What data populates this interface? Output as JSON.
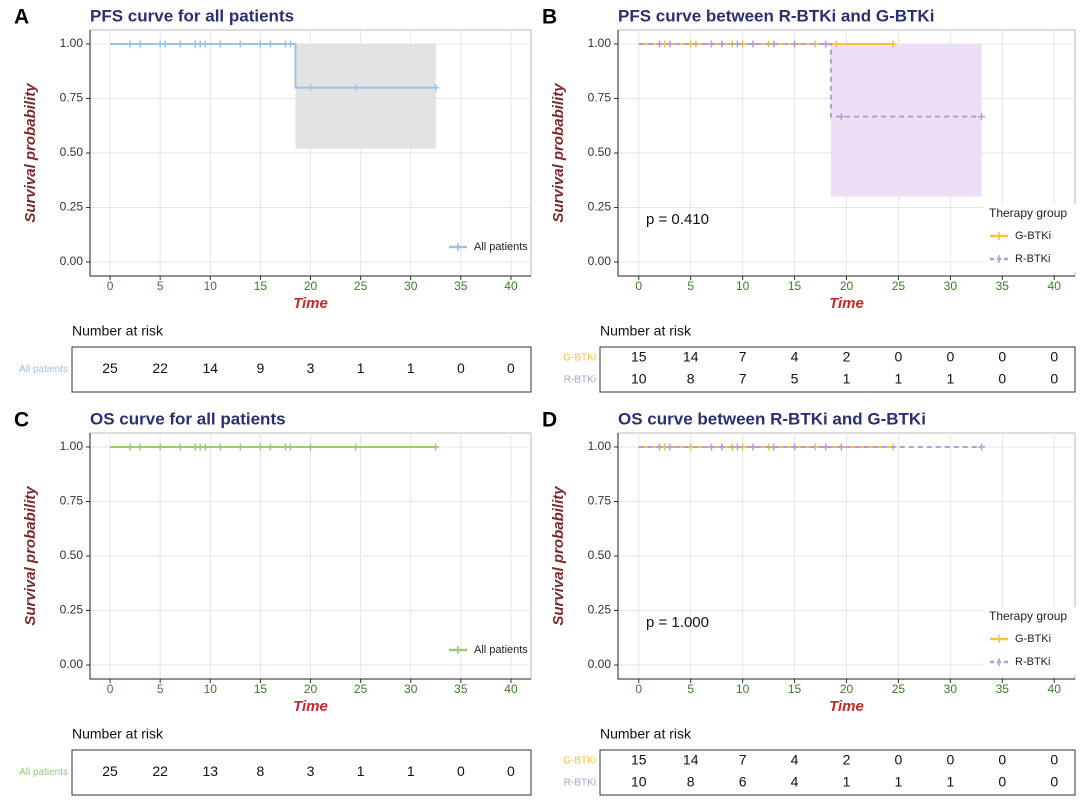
{
  "chart_data": [
    {
      "type": "step",
      "panel": "A",
      "title": "PFS curve for all patients",
      "x_label": "Time",
      "y_label": "Survival probability",
      "xlim": [
        -2,
        42
      ],
      "ylim": [
        -0.064,
        1.064
      ],
      "xticks": [
        0,
        5,
        10,
        15,
        20,
        25,
        30,
        35,
        40
      ],
      "yticks": [
        {
          "value": 0,
          "label": "0.00"
        },
        {
          "value": 0.25,
          "label": "0.25"
        },
        {
          "value": 0.5,
          "label": "0.50"
        },
        {
          "value": 0.75,
          "label": "0.75"
        },
        {
          "value": 1,
          "label": "1.00"
        }
      ],
      "grid": true,
      "legend": "bottom-right",
      "series": [
        {
          "name": "All patients",
          "color": "#9cc3e6",
          "line_style": "solid",
          "x": [
            0,
            18.5,
            18.5,
            32.5
          ],
          "values": [
            1,
            1,
            0.8,
            0.8
          ],
          "censor_x": [
            2,
            3,
            5,
            5.5,
            7,
            8.5,
            9,
            9.5,
            11,
            13,
            15,
            16,
            17.5,
            18,
            20,
            24.5,
            32.5
          ],
          "censor_y": [
            1,
            1,
            1,
            1,
            1,
            1,
            1,
            1,
            1,
            1,
            1,
            1,
            1,
            1,
            0.8,
            0.8,
            0.8
          ],
          "ci_color": "#e3e3e3",
          "ci_x": [
            18.5,
            32.5
          ],
          "ci_lower": [
            0.52,
            0.52
          ],
          "ci_upper": [
            1,
            1
          ]
        }
      ],
      "risk_table": {
        "title": "Number at risk",
        "rows": [
          {
            "name": "All patients",
            "color": "#9cc3e6",
            "values": [
              25,
              22,
              14,
              9,
              3,
              1,
              1,
              0,
              0
            ]
          }
        ]
      }
    },
    {
      "type": "step",
      "panel": "B",
      "title": "PFS curve between R-BTKi and G-BTKi",
      "x_label": "Time",
      "y_label": "Survival probability",
      "annotation": "p = 0.410",
      "xlim": [
        -2,
        42
      ],
      "ylim": [
        -0.064,
        1.064
      ],
      "xticks": [
        0,
        5,
        10,
        15,
        20,
        25,
        30,
        35,
        40
      ],
      "yticks": [
        {
          "value": 0,
          "label": "0.00"
        },
        {
          "value": 0.25,
          "label": "0.25"
        },
        {
          "value": 0.5,
          "label": "0.50"
        },
        {
          "value": 0.75,
          "label": "0.75"
        },
        {
          "value": 1,
          "label": "1.00"
        }
      ],
      "grid": true,
      "legend": "bottom-right",
      "legend_title": "Therapy group",
      "series": [
        {
          "name": "G-BTKi",
          "color": "#f5c342",
          "line_style": "solid",
          "x": [
            0,
            24.7
          ],
          "values": [
            1,
            1
          ],
          "censor_x": [
            2.5,
            5,
            5.5,
            8,
            9,
            10,
            12.5,
            15,
            17,
            19,
            24.5
          ],
          "censor_y": [
            1,
            1,
            1,
            1,
            1,
            1,
            1,
            1,
            1,
            1,
            1
          ]
        },
        {
          "name": "R-BTKi",
          "color": "#b89cd4",
          "line_style": "dashed",
          "x": [
            0,
            18.5,
            18.5,
            33
          ],
          "values": [
            1,
            1,
            0.667,
            0.667
          ],
          "censor_x": [
            2,
            3,
            7,
            8,
            9.5,
            11,
            13,
            15,
            18,
            19.5,
            33
          ],
          "censor_y": [
            1,
            1,
            1,
            1,
            1,
            1,
            1,
            1,
            1,
            0.667,
            0.667
          ],
          "ci_color": "#ecdff5",
          "ci_x": [
            18.5,
            33
          ],
          "ci_lower": [
            0.3,
            0.3
          ],
          "ci_upper": [
            1,
            1
          ]
        }
      ],
      "risk_table": {
        "title": "Number at risk",
        "rows": [
          {
            "name": "G-BTKi",
            "color": "#f5c342",
            "values": [
              15,
              14,
              7,
              4,
              2,
              0,
              0,
              0,
              0
            ]
          },
          {
            "name": "R-BTKi",
            "color": "#b89cd4",
            "values": [
              10,
              8,
              7,
              5,
              1,
              1,
              1,
              0,
              0
            ]
          }
        ]
      }
    },
    {
      "type": "step",
      "panel": "C",
      "title": "OS curve for all patients",
      "x_label": "Time",
      "y_label": "Survival probability",
      "xlim": [
        -2,
        42
      ],
      "ylim": [
        -0.064,
        1.064
      ],
      "xticks": [
        0,
        5,
        10,
        15,
        20,
        25,
        30,
        35,
        40
      ],
      "yticks": [
        {
          "value": 0,
          "label": "0.00"
        },
        {
          "value": 0.25,
          "label": "0.25"
        },
        {
          "value": 0.5,
          "label": "0.50"
        },
        {
          "value": 0.75,
          "label": "0.75"
        },
        {
          "value": 1,
          "label": "1.00"
        }
      ],
      "grid": true,
      "legend": "bottom-right",
      "series": [
        {
          "name": "All patients",
          "color": "#98cc7a",
          "line_style": "solid",
          "x": [
            0,
            32.5
          ],
          "values": [
            1,
            1
          ],
          "censor_x": [
            2,
            3,
            5,
            7,
            8.5,
            9,
            9.5,
            11,
            13,
            15,
            16,
            17.5,
            18,
            20,
            24.5,
            32.5
          ],
          "censor_y": [
            1,
            1,
            1,
            1,
            1,
            1,
            1,
            1,
            1,
            1,
            1,
            1,
            1,
            1,
            1,
            1
          ]
        }
      ],
      "risk_table": {
        "title": "Number at risk",
        "rows": [
          {
            "name": "All patients",
            "color": "#98cc7a",
            "values": [
              25,
              22,
              13,
              8,
              3,
              1,
              1,
              0,
              0
            ]
          }
        ]
      }
    },
    {
      "type": "step",
      "panel": "D",
      "title": "OS curve between R-BTKi and G-BTKi",
      "x_label": "Time",
      "y_label": "Survival probability",
      "annotation": "p = 1.000",
      "xlim": [
        -2,
        42
      ],
      "ylim": [
        -0.064,
        1.064
      ],
      "xticks": [
        0,
        5,
        10,
        15,
        20,
        25,
        30,
        35,
        40
      ],
      "yticks": [
        {
          "value": 0,
          "label": "0.00"
        },
        {
          "value": 0.25,
          "label": "0.25"
        },
        {
          "value": 0.5,
          "label": "0.50"
        },
        {
          "value": 0.75,
          "label": "0.75"
        },
        {
          "value": 1,
          "label": "1.00"
        }
      ],
      "grid": true,
      "legend": "bottom-right",
      "legend_title": "Therapy group",
      "series": [
        {
          "name": "G-BTKi",
          "color": "#f5c342",
          "line_style": "solid",
          "x": [
            0,
            24.5
          ],
          "values": [
            1,
            1
          ],
          "censor_x": [
            2.5,
            5,
            8,
            9,
            10,
            12.5,
            15,
            17,
            24.5
          ],
          "censor_y": [
            1,
            1,
            1,
            1,
            1,
            1,
            1,
            1,
            1
          ]
        },
        {
          "name": "R-BTKi",
          "color": "#b89cd4",
          "line_style": "dashed",
          "x": [
            0,
            33
          ],
          "values": [
            1,
            1
          ],
          "censor_x": [
            2,
            3,
            7,
            8,
            9.5,
            11,
            13,
            15,
            18,
            19.5,
            33
          ],
          "censor_y": [
            1,
            1,
            1,
            1,
            1,
            1,
            1,
            1,
            1,
            1,
            1
          ]
        }
      ],
      "risk_table": {
        "title": "Number at risk",
        "rows": [
          {
            "name": "G-BTKi",
            "color": "#f5c342",
            "values": [
              15,
              14,
              7,
              4,
              2,
              0,
              0,
              0,
              0
            ]
          },
          {
            "name": "R-BTKi",
            "color": "#b89cd4",
            "values": [
              10,
              8,
              6,
              4,
              1,
              1,
              1,
              0,
              0
            ]
          }
        ]
      }
    }
  ]
}
